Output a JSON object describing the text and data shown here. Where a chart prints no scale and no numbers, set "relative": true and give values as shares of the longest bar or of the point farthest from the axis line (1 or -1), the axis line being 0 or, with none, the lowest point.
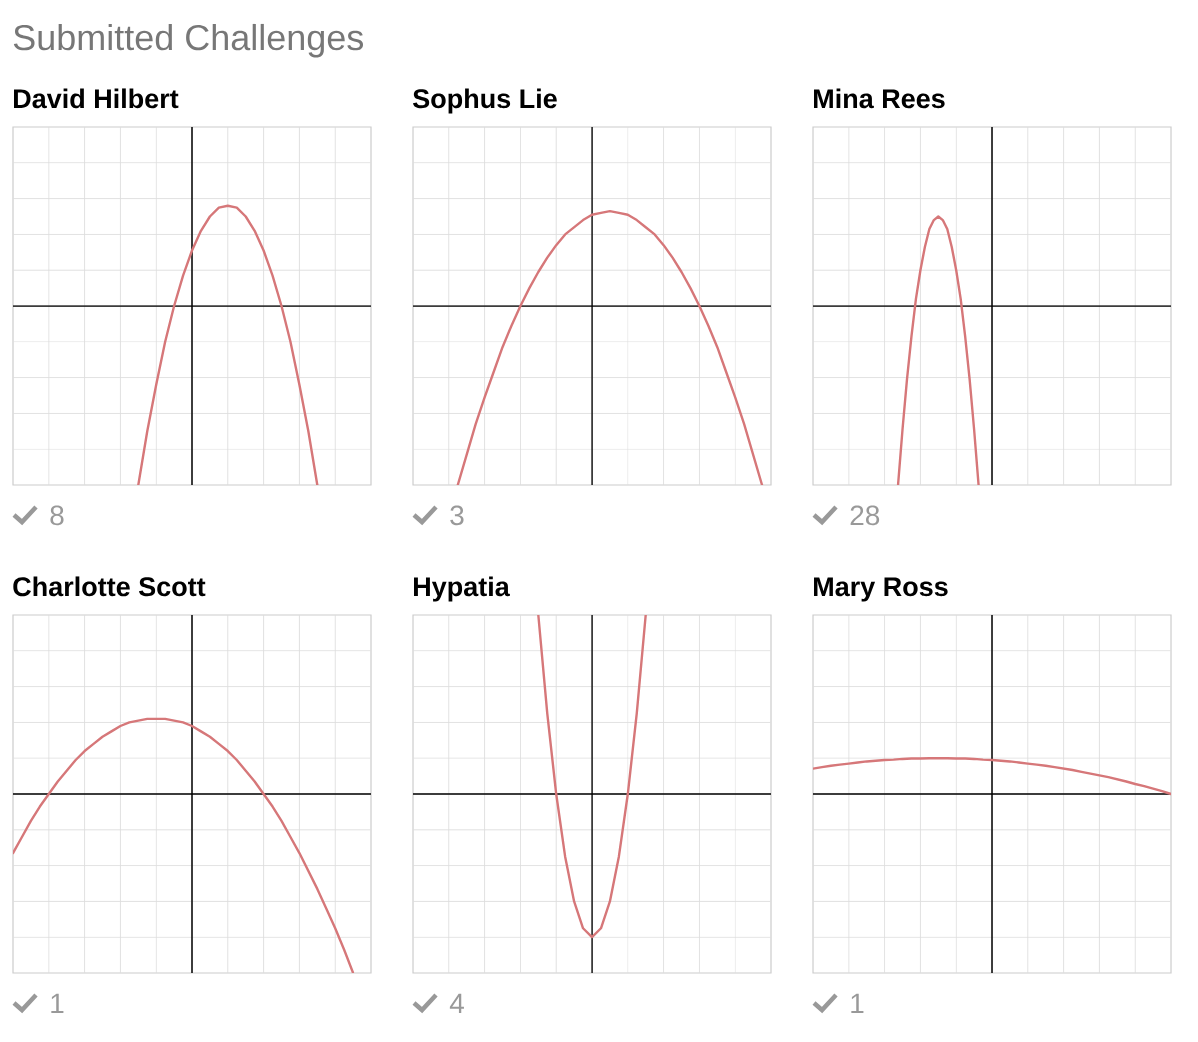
{
  "chart_data": [
    {
      "type": "other",
      "title": "Submitted Challenges"
    },
    {
      "type": "line",
      "title": "David Hilbert",
      "annotations": [
        "8"
      ],
      "relative": true,
      "grid": true,
      "categories": [
        null,
        null,
        null,
        null,
        null,
        null,
        null,
        null,
        null,
        null,
        null,
        null,
        null,
        null,
        null,
        null,
        null,
        null,
        null,
        null,
        null,
        null,
        null,
        null,
        null,
        null,
        null,
        null,
        null,
        null,
        null,
        null,
        null,
        null,
        null,
        null,
        null,
        null,
        null,
        null,
        null
      ],
      "series": [
        {
          "color": "#d67779",
          "values": [
            null,
            null,
            null,
            null,
            null,
            null,
            null,
            null,
            null,
            null,
            null,
            null,
            null,
            null,
            -1,
            -0.7,
            -0.44,
            -0.2,
            0,
            0.17,
            0.31,
            0.42,
            0.5,
            0.55,
            0.56,
            0.55,
            0.5,
            0.42,
            0.31,
            0.17,
            0,
            -0.2,
            -0.44,
            -0.7,
            -1,
            null,
            null,
            null,
            null,
            null,
            null
          ]
        }
      ]
    },
    {
      "type": "line",
      "title": "Sophus Lie",
      "annotations": [
        "3"
      ],
      "relative": true,
      "grid": true,
      "categories": [
        null,
        null,
        null,
        null,
        null,
        null,
        null,
        null,
        null,
        null,
        null,
        null,
        null,
        null,
        null,
        null,
        null,
        null,
        null,
        null,
        null,
        null,
        null,
        null,
        null,
        null,
        null,
        null,
        null,
        null,
        null,
        null,
        null,
        null,
        null,
        null,
        null,
        null,
        null,
        null,
        null
      ],
      "series": [
        {
          "color": "#d67779",
          "values": [
            null,
            null,
            null,
            null,
            null,
            -1,
            -0.83,
            -0.66,
            -0.51,
            -0.37,
            -0.23,
            -0.11,
            0,
            0.1,
            0.19,
            0.27,
            0.34,
            0.4,
            0.44,
            0.48,
            0.51,
            0.52,
            0.53,
            0.52,
            0.51,
            0.48,
            0.44,
            0.4,
            0.34,
            0.27,
            0.19,
            0.1,
            0,
            -0.11,
            -0.23,
            -0.37,
            -0.51,
            -0.66,
            -0.83,
            -1,
            null
          ]
        }
      ]
    },
    {
      "type": "line",
      "title": "Mina Rees",
      "annotations": [
        "28"
      ],
      "relative": true,
      "grid": true,
      "categories": [
        null,
        null,
        null,
        null,
        null,
        null,
        null,
        null,
        null,
        null,
        null,
        null,
        null,
        null,
        null,
        null,
        null,
        null,
        null,
        null,
        null,
        null,
        null,
        null,
        null,
        null,
        null,
        null,
        null,
        null,
        null,
        null,
        null,
        null,
        null,
        null,
        null,
        null,
        null,
        null,
        null,
        null,
        null,
        null,
        null,
        null,
        null,
        null,
        null,
        null,
        null,
        null,
        null,
        null,
        null,
        null,
        null,
        null,
        null,
        null,
        null,
        null,
        null,
        null,
        null,
        null,
        null,
        null,
        null,
        null,
        null,
        null,
        null,
        null,
        null,
        null,
        null,
        null,
        null,
        null,
        null
      ],
      "series": [
        {
          "color": "#d67779",
          "values": [
            null,
            null,
            null,
            null,
            null,
            null,
            null,
            null,
            null,
            null,
            null,
            null,
            null,
            null,
            null,
            null,
            null,
            null,
            null,
            -1,
            -0.69,
            -0.41,
            -0.17,
            0.04,
            0.2,
            0.33,
            0.43,
            0.48,
            0.5,
            0.48,
            0.43,
            0.33,
            0.2,
            0.04,
            -0.17,
            -0.41,
            -0.69,
            -1,
            null,
            null,
            null,
            null,
            null,
            null,
            null,
            null,
            null,
            null,
            null,
            null,
            null,
            null,
            null,
            null,
            null,
            null,
            null,
            null,
            null,
            null,
            null,
            null,
            null,
            null,
            null,
            null,
            null,
            null,
            null,
            null,
            null,
            null,
            null,
            null,
            null,
            null,
            null,
            null,
            null,
            null,
            null
          ]
        }
      ]
    },
    {
      "type": "line",
      "title": "Charlotte Scott",
      "annotations": [
        "1"
      ],
      "relative": true,
      "grid": true,
      "categories": [
        null,
        null,
        null,
        null,
        null,
        null,
        null,
        null,
        null,
        null,
        null,
        null,
        null,
        null,
        null,
        null,
        null,
        null,
        null,
        null,
        null,
        null,
        null,
        null,
        null,
        null,
        null,
        null,
        null,
        null,
        null,
        null,
        null,
        null,
        null,
        null,
        null,
        null,
        null,
        null,
        null
      ],
      "series": [
        {
          "color": "#d67779",
          "values": [
            -0.33,
            -0.24,
            -0.15,
            -0.07,
            0,
            0.07,
            0.13,
            0.19,
            0.24,
            0.28,
            0.32,
            0.35,
            0.38,
            0.4,
            0.41,
            0.42,
            0.42,
            0.42,
            0.41,
            0.4,
            0.38,
            0.35,
            0.32,
            0.28,
            0.24,
            0.19,
            0.13,
            0.07,
            0,
            -0.07,
            -0.15,
            -0.24,
            -0.33,
            -0.43,
            -0.53,
            -0.64,
            -0.75,
            -0.87,
            -1,
            null,
            null
          ]
        }
      ]
    },
    {
      "type": "line",
      "title": "Hypatia",
      "annotations": [
        "4"
      ],
      "relative": true,
      "grid": true,
      "categories": [
        null,
        null,
        null,
        null,
        null,
        null,
        null,
        null,
        null,
        null,
        null,
        null,
        null,
        null,
        null,
        null,
        null,
        null,
        null,
        null,
        null,
        null,
        null,
        null,
        null,
        null,
        null,
        null,
        null,
        null,
        null,
        null,
        null,
        null,
        null,
        null,
        null,
        null,
        null,
        null,
        null
      ],
      "series": [
        {
          "color": "#d67779",
          "values": [
            null,
            null,
            null,
            null,
            null,
            null,
            null,
            null,
            null,
            null,
            null,
            null,
            null,
            null,
            1,
            0.45,
            0,
            -0.35,
            -0.6,
            -0.75,
            -0.8,
            -0.75,
            -0.6,
            -0.35,
            0,
            0.45,
            1,
            null,
            null,
            null,
            null,
            null,
            null,
            null,
            null,
            null,
            null,
            null,
            null,
            null,
            null
          ]
        }
      ]
    },
    {
      "type": "line",
      "title": "Mary Ross",
      "annotations": [
        "1"
      ],
      "relative": true,
      "grid": true,
      "categories": [
        null,
        null,
        null,
        null,
        null,
        null,
        null,
        null,
        null,
        null,
        null,
        null,
        null,
        null,
        null,
        null,
        null,
        null,
        null,
        null,
        null,
        null,
        null,
        null,
        null,
        null,
        null,
        null,
        null,
        null,
        null,
        null,
        null,
        null,
        null,
        null,
        null,
        null,
        null,
        null,
        null
      ],
      "series": [
        {
          "color": "#d67779",
          "values": [
            0.71,
            0.75,
            0.79,
            0.82,
            0.85,
            0.88,
            0.91,
            0.93,
            0.95,
            0.96,
            0.98,
            0.99,
            0.99,
            1.0,
            1,
            1.0,
            0.99,
            0.99,
            0.98,
            0.96,
            0.95,
            0.93,
            0.91,
            0.88,
            0.85,
            0.82,
            0.79,
            0.75,
            0.71,
            0.67,
            0.62,
            0.57,
            0.52,
            0.47,
            0.41,
            0.35,
            0.28,
            0.22,
            0.15,
            0.08,
            0
          ]
        }
      ]
    }
  ]
}
